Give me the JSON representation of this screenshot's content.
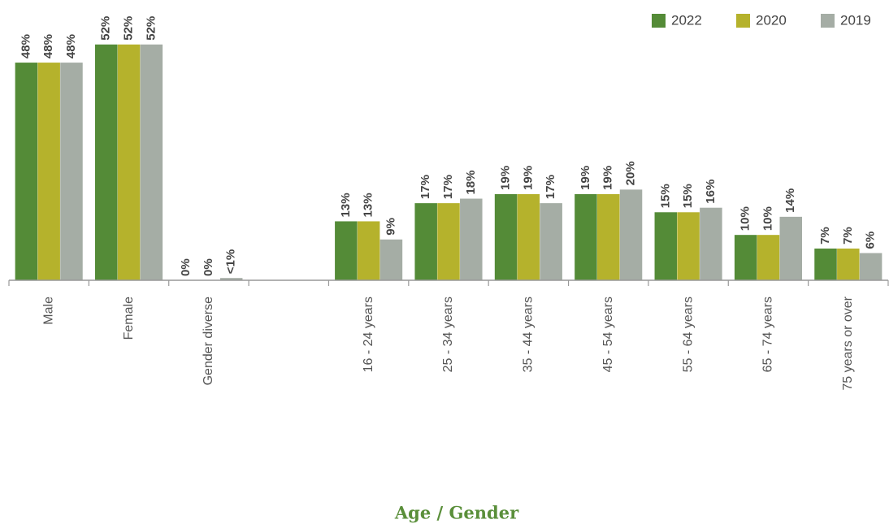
{
  "chart_data": {
    "type": "bar",
    "x_label": "Age / Gender",
    "categories": [
      "Male",
      "Female",
      "Gender diverse",
      null,
      "16 - 24 years",
      "25 - 34 years",
      "35 - 44 years",
      "45 - 54 years",
      "55 - 64 years",
      "65 - 74 years",
      "75 years or over"
    ],
    "series": [
      {
        "name": "2022",
        "color": "#548b37",
        "values": [
          48,
          52,
          0,
          null,
          13,
          17,
          19,
          19,
          15,
          10,
          7
        ],
        "value_labels": [
          "48%",
          "52%",
          "0%",
          null,
          "13%",
          "17%",
          "19%",
          "19%",
          "15%",
          "10%",
          "7%"
        ]
      },
      {
        "name": "2020",
        "color": "#b5b22c",
        "values": [
          48,
          52,
          0,
          null,
          13,
          17,
          19,
          19,
          15,
          10,
          7
        ],
        "value_labels": [
          "48%",
          "52%",
          "0%",
          null,
          "13%",
          "17%",
          "19%",
          "19%",
          "15%",
          "10%",
          "7%"
        ]
      },
      {
        "name": "2019",
        "color": "#a5ada5",
        "values": [
          48,
          52,
          0.5,
          null,
          9,
          18,
          17,
          20,
          16,
          14,
          6
        ],
        "value_labels": [
          "48%",
          "52%",
          "<1%",
          null,
          "9%",
          "18%",
          "17%",
          "20%",
          "16%",
          "14%",
          "6%"
        ]
      }
    ],
    "ylim": [
      0,
      55
    ],
    "legend": "top-right"
  }
}
